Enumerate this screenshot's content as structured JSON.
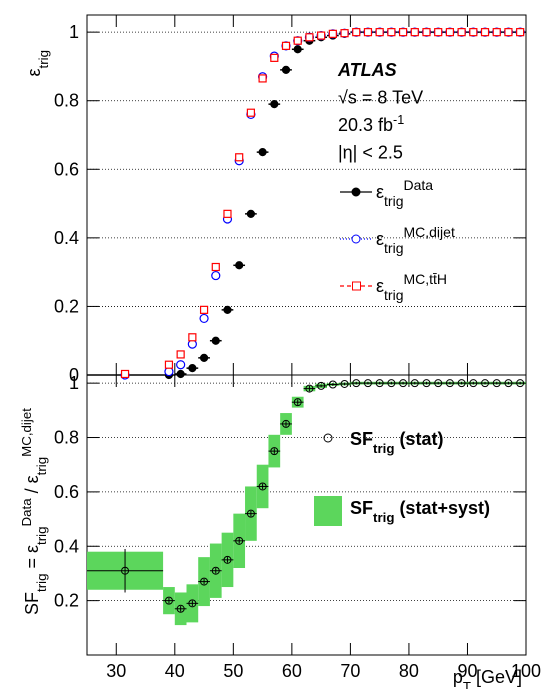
{
  "chart_data": [
    {
      "type": "scatter",
      "ylabel": [
        {
          "t": "ε"
        },
        {
          "t": "trig",
          "sub": true
        }
      ],
      "ylim": [
        0,
        1.05
      ],
      "yticks": [
        0,
        0.2,
        0.4,
        0.6,
        0.8,
        1
      ],
      "grid": true,
      "xlim": [
        25,
        100
      ],
      "x": [
        31.5,
        39,
        41,
        43,
        45,
        47,
        49,
        51,
        53,
        55,
        57,
        59,
        61,
        63,
        65,
        67,
        69,
        71,
        73,
        75,
        77,
        79,
        81,
        83,
        85,
        87,
        89,
        91,
        93,
        95,
        97,
        99
      ],
      "xerr": [
        6.5,
        1,
        1,
        1,
        1,
        1,
        1,
        1,
        1,
        1,
        1,
        1,
        1,
        1,
        1,
        1,
        1,
        1,
        1,
        1,
        1,
        1,
        1,
        1,
        1,
        1,
        1,
        1,
        1,
        1,
        1,
        1
      ],
      "annotations": [
        [
          {
            "t": "ATLAS",
            "bold": true
          }
        ],
        [
          {
            "t": "√s = 8 TeV"
          }
        ],
        [
          {
            "t": "20.3 fb"
          },
          {
            "t": "-1",
            "sup": true
          }
        ],
        [
          {
            "t": "|η| < 2.5"
          }
        ]
      ],
      "series": [
        {
          "name": [
            {
              "t": "ε"
            },
            {
              "t": "trig",
              "sub": true
            },
            {
              "t": "Data",
              "sup": true
            }
          ],
          "color": "#000000",
          "marker": "filled-circle",
          "line": "solid",
          "values": [
            0,
            0,
            0.003,
            0.02,
            0.05,
            0.1,
            0.19,
            0.32,
            0.47,
            0.65,
            0.79,
            0.89,
            0.95,
            0.975,
            0.985,
            0.99,
            0.995,
            1,
            1,
            1,
            1,
            1,
            1,
            1,
            1,
            1,
            1,
            1,
            1,
            1,
            1,
            1
          ]
        },
        {
          "name": [
            {
              "t": "ε"
            },
            {
              "t": "trig",
              "sub": true
            },
            {
              "t": "MC,dijet",
              "sup": true
            }
          ],
          "color": "#0000ff",
          "marker": "open-circle",
          "line": "dotted",
          "values": [
            0,
            0.01,
            0.03,
            0.09,
            0.165,
            0.29,
            0.455,
            0.625,
            0.76,
            0.87,
            0.93,
            0.96,
            0.975,
            0.985,
            0.99,
            0.995,
            0.997,
            1,
            1,
            1,
            1,
            1,
            1,
            1,
            1,
            1,
            1,
            1,
            1,
            1,
            1,
            1
          ]
        },
        {
          "name": [
            {
              "t": "ε"
            },
            {
              "t": "trig",
              "sub": true
            },
            {
              "t": "MC,tt̄H",
              "sup": true
            }
          ],
          "color": "#ff0000",
          "marker": "open-square",
          "line": "dashed",
          "values": [
            0.003,
            0.03,
            0.06,
            0.11,
            0.19,
            0.315,
            0.47,
            0.635,
            0.765,
            0.865,
            0.925,
            0.96,
            0.975,
            0.985,
            0.99,
            0.995,
            0.997,
            1,
            1,
            1,
            1,
            1,
            1,
            1,
            1,
            1,
            1,
            1,
            1,
            1,
            1,
            1
          ]
        }
      ]
    },
    {
      "type": "ratio",
      "ylabel": [
        {
          "t": "SF"
        },
        {
          "t": "trig",
          "sub": true
        },
        {
          "t": " = ε"
        },
        {
          "t": "trig",
          "sub": true
        },
        {
          "t": "Data",
          "sup": true
        },
        {
          "t": " / ε"
        },
        {
          "t": "trig",
          "sub": true
        },
        {
          "t": "MC,dijet",
          "sup": true
        }
      ],
      "xlabel": [
        {
          "t": "p"
        },
        {
          "t": "T",
          "sub": true
        },
        {
          "t": " [GeV]"
        }
      ],
      "xlim": [
        25,
        100
      ],
      "xticks": [
        30,
        40,
        50,
        60,
        70,
        80,
        90,
        100
      ],
      "ylim": [
        0,
        1.03
      ],
      "yticks": [
        0.2,
        0.4,
        0.6,
        0.8,
        1
      ],
      "grid": true,
      "x": [
        31.5,
        39,
        41,
        43,
        45,
        47,
        49,
        51,
        53,
        55,
        57,
        59,
        61,
        63,
        65,
        67,
        69,
        71,
        73,
        75,
        77,
        79,
        81,
        83,
        85,
        87,
        89,
        91,
        93,
        95,
        97,
        99
      ],
      "xerr": [
        6.5,
        1,
        1,
        1,
        1,
        1,
        1,
        1,
        1,
        1,
        1,
        1,
        1,
        1,
        1,
        1,
        1,
        1,
        1,
        1,
        1,
        1,
        1,
        1,
        1,
        1,
        1,
        1,
        1,
        1,
        1,
        1
      ],
      "series": [
        {
          "name": [
            {
              "t": "SF"
            },
            {
              "t": "trig",
              "sub": true
            },
            {
              "t": " (stat)"
            }
          ],
          "color": "#000000",
          "values": [
            0.31,
            0.2,
            0.17,
            0.19,
            0.27,
            0.31,
            0.35,
            0.42,
            0.52,
            0.62,
            0.75,
            0.85,
            0.93,
            0.98,
            0.99,
            0.995,
            0.997,
            1,
            1,
            1,
            1,
            1,
            1,
            1,
            1,
            1,
            1,
            1,
            1,
            1,
            1,
            1
          ],
          "errors": [
            0.08,
            0.01,
            0.01,
            0.01,
            0.01,
            0.01,
            0.01,
            0.01,
            0.01,
            0.01,
            0.01,
            0.01,
            0.01,
            0.01,
            0.005,
            0.005,
            0.005,
            0.005,
            0.005,
            0.005,
            0.005,
            0.005,
            0.005,
            0.005,
            0.005,
            0.005,
            0.005,
            0.005,
            0.005,
            0.005,
            0.005,
            0.005
          ]
        },
        {
          "name": [
            {
              "t": "SF"
            },
            {
              "t": "trig",
              "sub": true
            },
            {
              "t": " (stat+syst)"
            }
          ],
          "color": "#5cd65c",
          "errors": [
            0.07,
            0.05,
            0.06,
            0.07,
            0.09,
            0.1,
            0.1,
            0.1,
            0.1,
            0.08,
            0.06,
            0.04,
            0.02,
            0.01,
            0.008,
            0.005,
            0.005,
            0.005,
            0.005,
            0.005,
            0.005,
            0.005,
            0.005,
            0.005,
            0.005,
            0.005,
            0.005,
            0.005,
            0.005,
            0.005,
            0.005,
            0.005
          ]
        }
      ]
    }
  ]
}
